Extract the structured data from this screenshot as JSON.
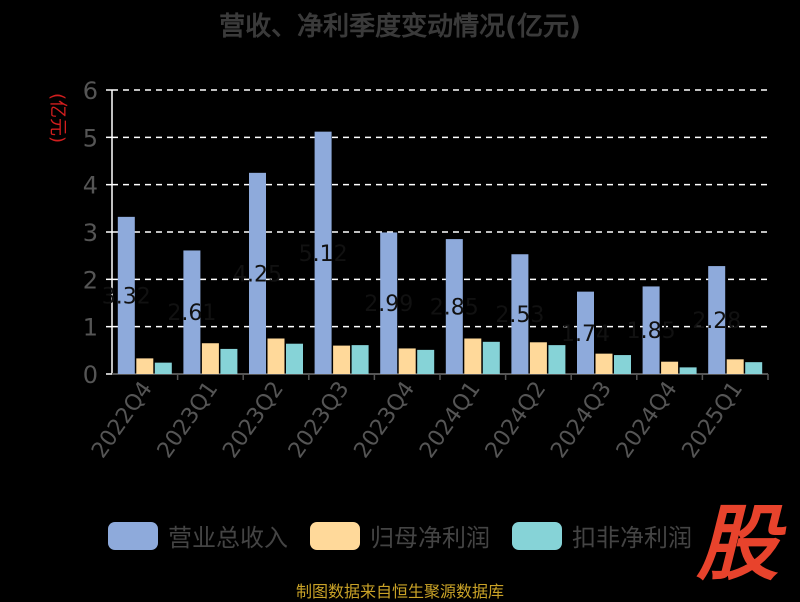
{
  "colors": {
    "revenue": "#8eaadb",
    "parent_profit": "#ffd99a",
    "deducted_profit": "#86d3d7"
  },
  "footer": {
    "source": "制图数据来自恒生聚源数据库"
  },
  "logo": {
    "text": "股"
  },
  "chart_data": {
    "type": "bar",
    "title": "营收、净利季度变动情况(亿元)",
    "ylabel": "(亿元)",
    "xlabel": "",
    "ylim": [
      0,
      6
    ],
    "yticks": [
      0,
      1,
      2,
      3,
      4,
      5,
      6
    ],
    "grid": true,
    "legend_position": "bottom",
    "categories": [
      "2022Q4",
      "2023Q1",
      "2023Q2",
      "2023Q3",
      "2023Q4",
      "2024Q1",
      "2024Q2",
      "2024Q3",
      "2024Q4",
      "2025Q1"
    ],
    "series": [
      {
        "name": "营业总收入",
        "values": [
          3.32,
          2.61,
          4.25,
          5.12,
          2.99,
          2.85,
          2.53,
          1.74,
          1.85,
          2.28
        ]
      },
      {
        "name": "归母净利润",
        "values": [
          0.33,
          0.65,
          0.75,
          0.6,
          0.54,
          0.75,
          0.67,
          0.43,
          0.26,
          0.31
        ]
      },
      {
        "name": "扣非净利润",
        "values": [
          0.24,
          0.53,
          0.64,
          0.61,
          0.51,
          0.68,
          0.61,
          0.4,
          0.14,
          0.25
        ]
      }
    ],
    "data_labels": [
      "3.32",
      "2.61",
      "4.25",
      "5.12",
      "2.99",
      "2.85",
      "2.53",
      "1.74",
      "1.85",
      "2.28"
    ]
  }
}
